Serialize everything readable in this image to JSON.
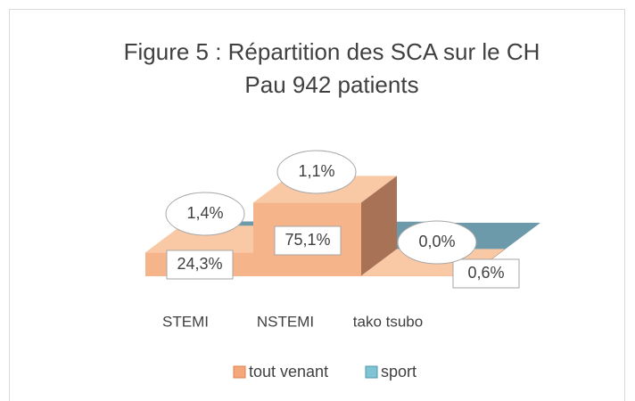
{
  "chart_data": {
    "type": "bar3d",
    "title": "Figure 5 : Répartition des SCA sur le CH",
    "subtitle": "Pau 942 patients",
    "categories": [
      "STEMI",
      "NSTEMI",
      "tako tsubo"
    ],
    "series": [
      {
        "name": "tout venant",
        "color": "#f6b48a",
        "values": [
          24.3,
          75.1,
          0.6
        ],
        "value_labels": [
          "24,3%",
          "75,1%",
          "0,6%"
        ]
      },
      {
        "name": "sport",
        "color": "#6f9fb0",
        "values": [
          1.4,
          1.1,
          0.0
        ],
        "value_labels": [
          "1,4%",
          "1,1%",
          "0,0%"
        ]
      }
    ],
    "legend": "bottom"
  }
}
